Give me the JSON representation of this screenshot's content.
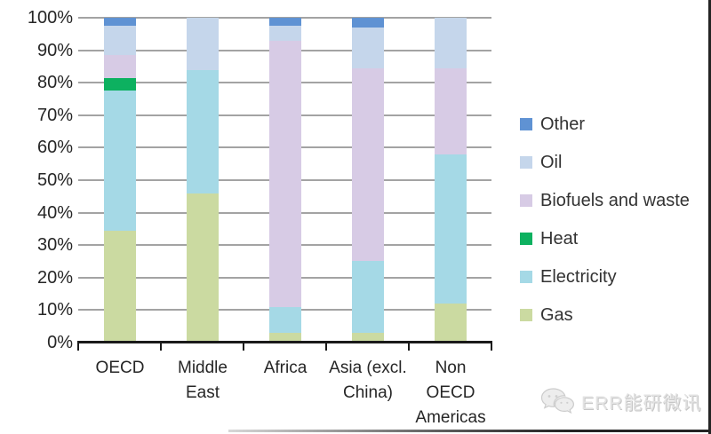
{
  "watermark": {
    "text": "ERR能研微讯",
    "logo": "wechat-logo"
  },
  "chart_data": {
    "type": "bar",
    "variant": "stacked-100-percent",
    "title": "",
    "xlabel": "",
    "ylabel": "",
    "ylim": [
      0,
      100
    ],
    "grid": true,
    "legend_position": "right",
    "y_ticks": [
      "100%",
      "90%",
      "80%",
      "70%",
      "60%",
      "50%",
      "40%",
      "30%",
      "20%",
      "10%",
      "0%"
    ],
    "categories": [
      "OECD",
      "Middle East",
      "Africa",
      "Asia (excl. China)",
      "Non OECD Americas"
    ],
    "category_label_lines": [
      [
        "OECD"
      ],
      [
        "Middle",
        "East"
      ],
      [
        "Africa"
      ],
      [
        "Asia (excl.",
        "China)"
      ],
      [
        "Non",
        "OECD",
        "Americas"
      ]
    ],
    "series": [
      {
        "name": "Gas",
        "color": "#cbdaa1",
        "values": [
          34.5,
          46.0,
          3.0,
          3.0,
          12.0
        ]
      },
      {
        "name": "Electricity",
        "color": "#a5d9e6",
        "values": [
          43.0,
          38.0,
          8.0,
          22.0,
          46.0
        ]
      },
      {
        "name": "Heat",
        "color": "#0db160",
        "values": [
          4.0,
          0.0,
          0.0,
          0.0,
          0.0
        ]
      },
      {
        "name": "Biofuels and waste",
        "color": "#d7cbe5",
        "values": [
          6.9,
          0.0,
          82.0,
          59.5,
          26.5
        ]
      },
      {
        "name": "Oil",
        "color": "#c5d6eb",
        "values": [
          9.1,
          16.0,
          4.5,
          12.5,
          15.5
        ]
      },
      {
        "name": "Other",
        "color": "#5f92d3",
        "values": [
          2.5,
          0.0,
          2.5,
          3.0,
          0.0
        ]
      }
    ],
    "legend_order": [
      "Other",
      "Oil",
      "Biofuels and waste",
      "Heat",
      "Electricity",
      "Gas"
    ]
  }
}
